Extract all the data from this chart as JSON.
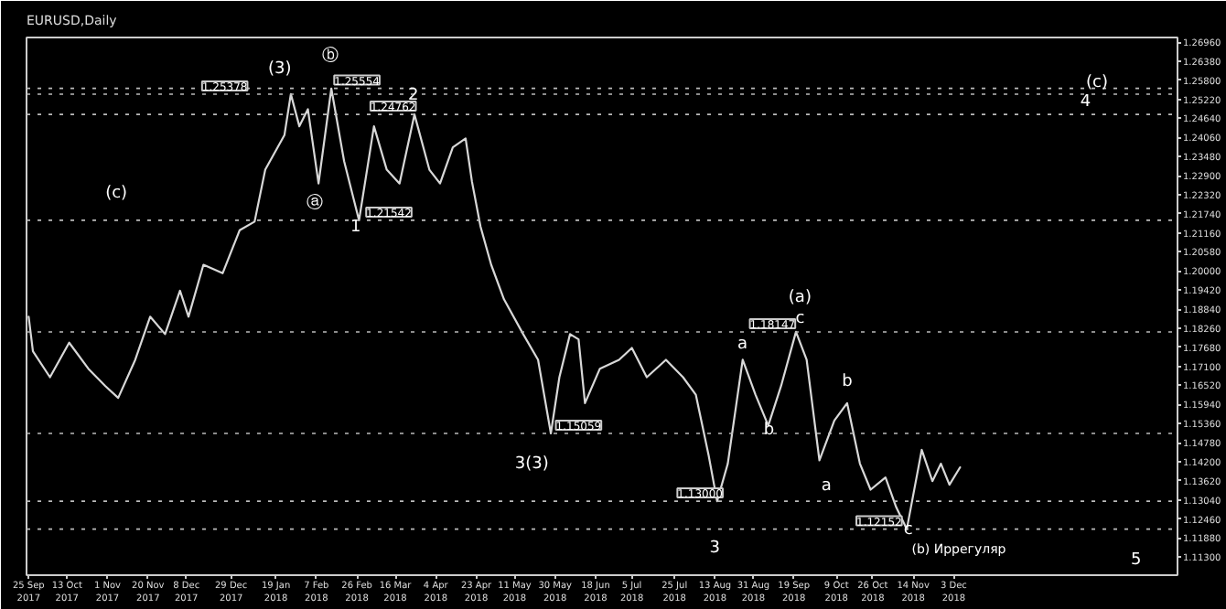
{
  "chart_data": {
    "type": "line",
    "title": "EURUSD,Daily",
    "x": [
      "2017-09-25",
      "2017-09-27",
      "2017-10-05",
      "2017-10-14",
      "2017-10-23",
      "2017-10-31",
      "2017-11-06",
      "2017-11-14",
      "2017-11-21",
      "2017-11-28",
      "2017-12-05",
      "2017-12-09",
      "2017-12-16",
      "2017-12-25",
      "2018-01-02",
      "2018-01-09",
      "2018-01-14",
      "2018-01-23",
      "2018-01-26",
      "2018-01-30",
      "2018-02-03",
      "2018-02-08",
      "2018-02-14",
      "2018-02-20",
      "2018-02-27",
      "2018-03-06",
      "2018-03-12",
      "2018-03-18",
      "2018-03-25",
      "2018-04-01",
      "2018-04-06",
      "2018-04-12",
      "2018-04-18",
      "2018-04-21",
      "2018-04-25",
      "2018-04-30",
      "2018-05-06",
      "2018-05-15",
      "2018-05-22",
      "2018-05-28",
      "2018-06-01",
      "2018-06-06",
      "2018-06-10",
      "2018-06-13",
      "2018-06-20",
      "2018-06-29",
      "2018-07-05",
      "2018-07-12",
      "2018-07-21",
      "2018-07-29",
      "2018-08-04",
      "2018-08-10",
      "2018-08-14",
      "2018-08-19",
      "2018-08-26",
      "2018-09-01",
      "2018-09-07",
      "2018-09-13",
      "2018-09-20",
      "2018-09-25",
      "2018-10-01",
      "2018-10-08",
      "2018-10-14",
      "2018-10-20",
      "2018-10-25",
      "2018-11-01",
      "2018-11-06",
      "2018-11-11",
      "2018-11-18",
      "2018-11-23",
      "2018-11-27",
      "2018-12-01",
      "2018-12-06"
    ],
    "series": [
      {
        "color": "#d8d8d8",
        "values": [
          1.1861,
          1.1756,
          1.1677,
          1.1782,
          1.1703,
          1.165,
          1.1614,
          1.173,
          1.1861,
          1.1808,
          1.194,
          1.1861,
          1.2019,
          1.1993,
          1.2124,
          1.215,
          1.2308,
          1.2413,
          1.2538,
          1.244,
          1.2492,
          1.2266,
          1.2555,
          1.2334,
          1.2154,
          1.244,
          1.2308,
          1.2266,
          1.2476,
          1.2308,
          1.2266,
          1.2376,
          1.2403,
          1.2271,
          1.2135,
          1.2019,
          1.1914,
          1.1808,
          1.173,
          1.1506,
          1.1677,
          1.1808,
          1.1792,
          1.1598,
          1.1703,
          1.173,
          1.1766,
          1.1677,
          1.173,
          1.1677,
          1.1624,
          1.144,
          1.13,
          1.1414,
          1.173,
          1.1624,
          1.153,
          1.165,
          1.1815,
          1.173,
          1.1424,
          1.1545,
          1.1598,
          1.1414,
          1.1335,
          1.1372,
          1.1282,
          1.1215,
          1.1456,
          1.1361,
          1.1414,
          1.135,
          1.1403
        ]
      }
    ],
    "xlim": [
      "2017-09-24",
      "2019-03-18"
    ],
    "ylim": [
      1.1075,
      1.271
    ],
    "xticks": [
      {
        "value": "2017-09-25",
        "label": "25 Sep 2017"
      },
      {
        "value": "2017-10-13",
        "label": "13 Oct 2017"
      },
      {
        "value": "2017-11-01",
        "label": "1 Nov 2017"
      },
      {
        "value": "2017-11-20",
        "label": "20 Nov 2017"
      },
      {
        "value": "2017-12-08",
        "label": "8 Dec 2017"
      },
      {
        "value": "2017-12-29",
        "label": "29 Dec 2017"
      },
      {
        "value": "2018-01-19",
        "label": "19 Jan 2018"
      },
      {
        "value": "2018-02-07",
        "label": "7 Feb 2018"
      },
      {
        "value": "2018-02-26",
        "label": "26 Feb 2018"
      },
      {
        "value": "2018-03-16",
        "label": "16 Mar 2018"
      },
      {
        "value": "2018-04-04",
        "label": "4 Apr 2018"
      },
      {
        "value": "2018-04-23",
        "label": "23 Apr 2018"
      },
      {
        "value": "2018-05-11",
        "label": "11 May 2018"
      },
      {
        "value": "2018-05-30",
        "label": "30 May 2018"
      },
      {
        "value": "2018-06-18",
        "label": "18 Jun 2018"
      },
      {
        "value": "2018-07-05",
        "label": "5 Jul 2018"
      },
      {
        "value": "2018-07-25",
        "label": "25 Jul 2018"
      },
      {
        "value": "2018-08-13",
        "label": "13 Aug 2018"
      },
      {
        "value": "2018-08-31",
        "label": "31 Aug 2018"
      },
      {
        "value": "2018-09-19",
        "label": "19 Sep 2018"
      },
      {
        "value": "2018-10-09",
        "label": "9 Oct 2018"
      },
      {
        "value": "2018-10-26",
        "label": "26 Oct 2018"
      },
      {
        "value": "2018-11-14",
        "label": "14 Nov 2018"
      },
      {
        "value": "2018-12-03",
        "label": "3 Dec 2018"
      }
    ],
    "yticks": [
      {
        "value": 1.2696,
        "label": "1.26960"
      },
      {
        "value": 1.2638,
        "label": "1.26380"
      },
      {
        "value": 1.258,
        "label": "1.25800"
      },
      {
        "value": 1.2522,
        "label": "1.25220"
      },
      {
        "value": 1.2464,
        "label": "1.24640"
      },
      {
        "value": 1.2406,
        "label": "1.24060"
      },
      {
        "value": 1.2348,
        "label": "1.23480"
      },
      {
        "value": 1.229,
        "label": "1.22900"
      },
      {
        "value": 1.2232,
        "label": "1.22320"
      },
      {
        "value": 1.2174,
        "label": "1.21740"
      },
      {
        "value": 1.2116,
        "label": "1.21160"
      },
      {
        "value": 1.2058,
        "label": "1.20580"
      },
      {
        "value": 1.2,
        "label": "1.20000"
      },
      {
        "value": 1.1942,
        "label": "1.19420"
      },
      {
        "value": 1.1884,
        "label": "1.18840"
      },
      {
        "value": 1.1826,
        "label": "1.18260"
      },
      {
        "value": 1.1768,
        "label": "1.17680"
      },
      {
        "value": 1.171,
        "label": "1.17100"
      },
      {
        "value": 1.1652,
        "label": "1.16520"
      },
      {
        "value": 1.1594,
        "label": "1.15940"
      },
      {
        "value": 1.1536,
        "label": "1.15360"
      },
      {
        "value": 1.1478,
        "label": "1.14780"
      },
      {
        "value": 1.142,
        "label": "1.14200"
      },
      {
        "value": 1.1362,
        "label": "1.13620"
      },
      {
        "value": 1.1304,
        "label": "1.13040"
      },
      {
        "value": 1.1246,
        "label": "1.12460"
      },
      {
        "value": 1.1188,
        "label": "1.11880"
      },
      {
        "value": 1.113,
        "label": "1.11300"
      }
    ],
    "ref_lines": [
      {
        "axis": "y",
        "value": 1.25378,
        "color": "#bbbbbb",
        "line_style": "dotted"
      },
      {
        "axis": "y",
        "value": 1.25554,
        "color": "#bbbbbb",
        "line_style": "dotted"
      },
      {
        "axis": "y",
        "value": 1.24762,
        "color": "#bbbbbb",
        "line_style": "dotted"
      },
      {
        "axis": "y",
        "value": 1.21542,
        "color": "#bbbbbb",
        "line_style": "dotted"
      },
      {
        "axis": "y",
        "value": 1.15059,
        "color": "#bbbbbb",
        "line_style": "dotted"
      },
      {
        "axis": "y",
        "value": 1.18147,
        "color": "#bbbbbb",
        "line_style": "dotted"
      },
      {
        "axis": "y",
        "value": 1.13,
        "color": "#bbbbbb",
        "line_style": "dotted"
      },
      {
        "axis": "y",
        "value": 1.12152,
        "color": "#bbbbbb",
        "line_style": "dotted"
      }
    ],
    "annotations": [
      {
        "text": "1.25378",
        "x": "2017-12-26",
        "y": 1.25378
      },
      {
        "text": "1.25554",
        "x": "2018-02-26",
        "y": 1.25554
      },
      {
        "text": "1.24762",
        "x": "2018-03-15",
        "y": 1.24762
      },
      {
        "text": "1.21542",
        "x": "2018-03-13",
        "y": 1.21542
      },
      {
        "text": "1.15059",
        "x": "2018-06-10",
        "y": 1.15059
      },
      {
        "text": "1.18147",
        "x": "2018-09-09",
        "y": 1.18147
      },
      {
        "text": "1.13000",
        "x": "2018-08-06",
        "y": 1.13
      },
      {
        "text": "1.12152",
        "x": "2018-10-29",
        "y": 1.12152
      },
      "(c)",
      "(3)",
      "ⓑ",
      "ⓐ",
      "1",
      "2",
      "3(3)",
      "3",
      "a",
      "b",
      "(a)",
      "c",
      "a",
      "b",
      "c",
      "(b) Иррегуляр",
      "4",
      "(c)",
      "5"
    ],
    "grid": false
  }
}
